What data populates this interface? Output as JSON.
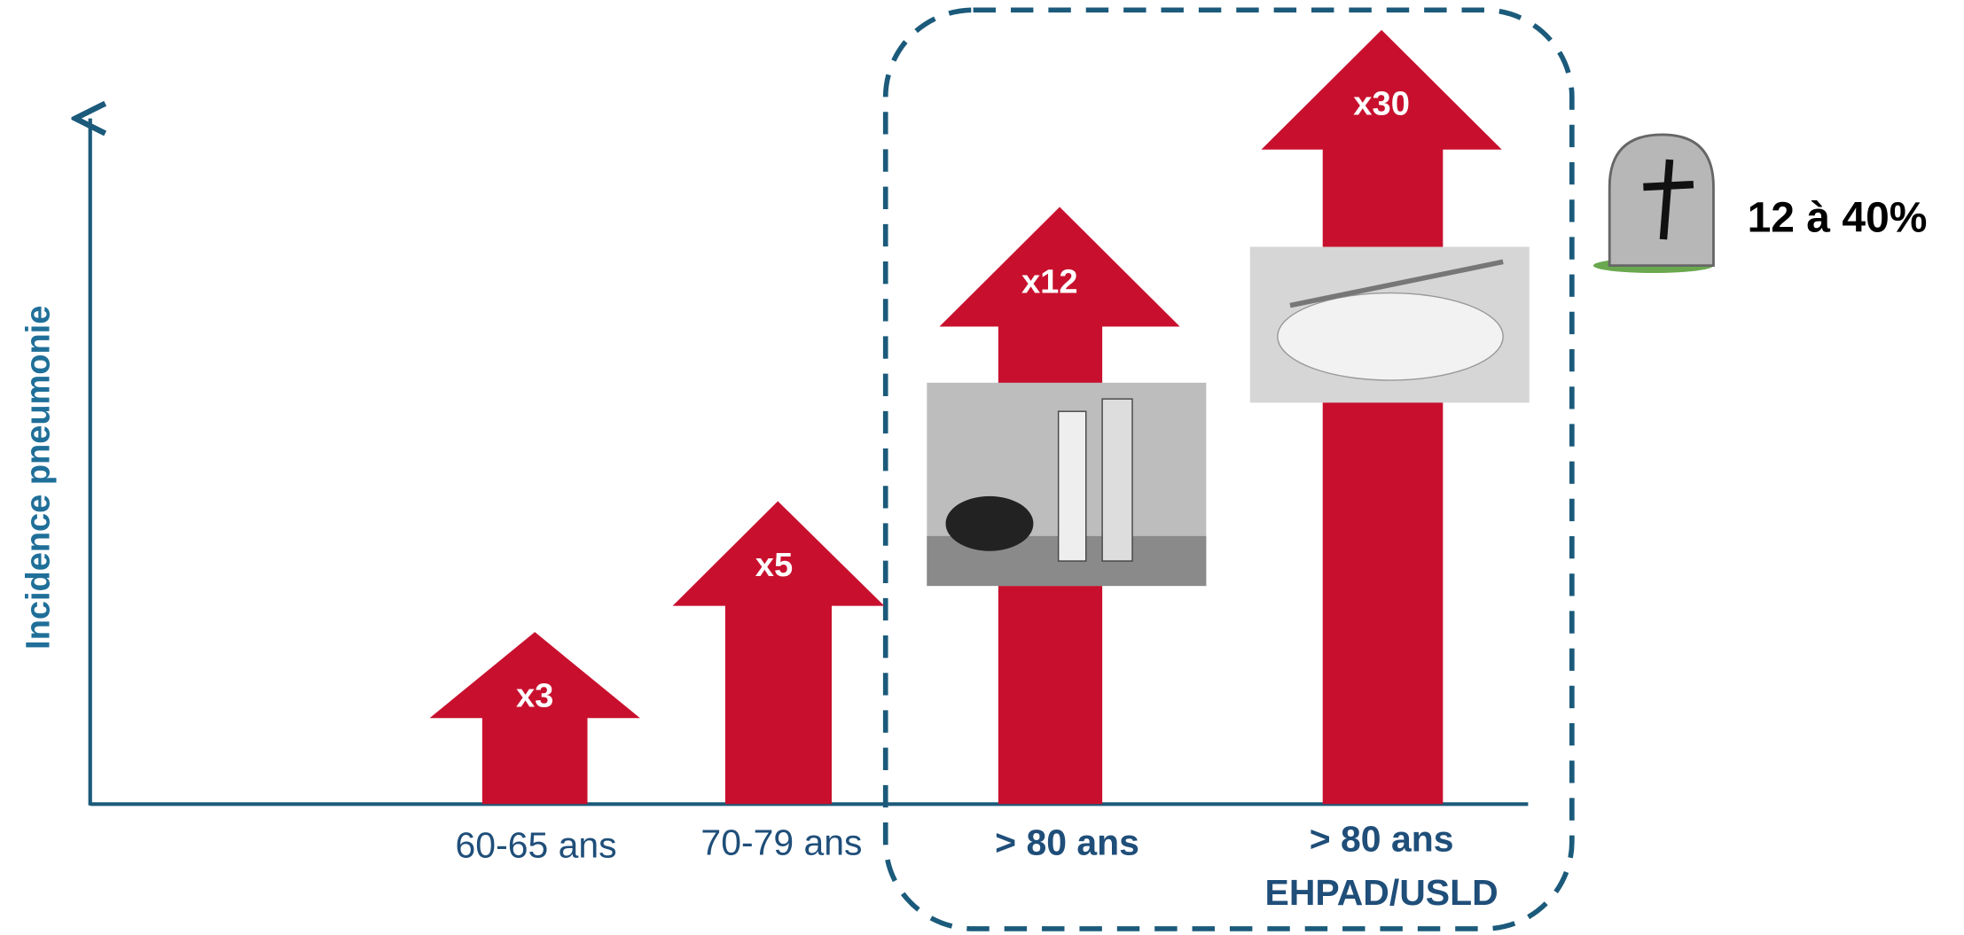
{
  "y_axis_label": "Incidence pneumonie",
  "groups": [
    {
      "label_lines": [
        "60-65 ans"
      ],
      "multiplier": "x3"
    },
    {
      "label_lines": [
        "70-79 ans"
      ],
      "multiplier": "x5"
    },
    {
      "label_lines": [
        "> 80 ans"
      ],
      "multiplier": "x12"
    },
    {
      "label_lines": [
        "> 80 ans",
        "EHPAD/USLD"
      ],
      "multiplier": "x30"
    }
  ],
  "mortality": "12 à 40%"
}
